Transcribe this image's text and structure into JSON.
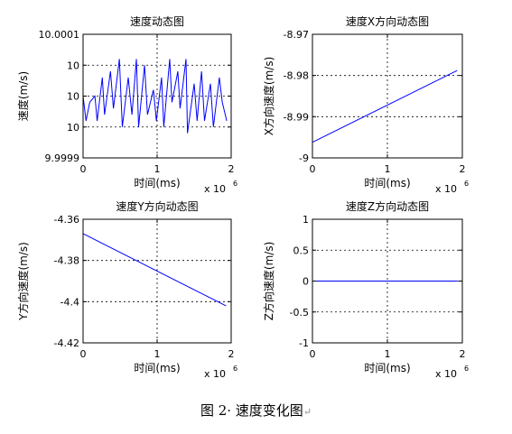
{
  "caption": "图 2· 速度变化图",
  "caption_mark": "↵",
  "chart_data": [
    {
      "type": "line",
      "title": "速度动态图",
      "xlabel": "时间(ms)",
      "ylabel": "速度(m/s)",
      "x_exponent_label": "x 10",
      "x_exponent_power": "6",
      "xlim": [
        0,
        2
      ],
      "ylim": [
        9.9999,
        10.0001
      ],
      "xticks": [
        0,
        1,
        2
      ],
      "xtick_labels": [
        "0",
        "1",
        "2"
      ],
      "yticks": [
        9.9999,
        9.99995,
        10,
        10.00005,
        10.0001
      ],
      "ytick_labels": [
        "9.9999",
        "10",
        "10",
        "10",
        "10.0001"
      ],
      "grid": "dotted",
      "series": [
        {
          "color": "#0000ff",
          "x": [
            0,
            0.04,
            0.09,
            0.16,
            0.19,
            0.26,
            0.29,
            0.37,
            0.41,
            0.49,
            0.53,
            0.61,
            0.66,
            0.72,
            0.75,
            0.83,
            0.87,
            0.95,
            0.99,
            1.06,
            1.09,
            1.17,
            1.2,
            1.28,
            1.31,
            1.39,
            1.41,
            1.5,
            1.54,
            1.6,
            1.64,
            1.72,
            1.76,
            1.84,
            1.88,
            1.94
          ],
          "y": [
            10.0,
            9.99996,
            9.99999,
            10.0,
            9.99996,
            10.00003,
            9.99997,
            10.00004,
            9.99998,
            10.00006,
            9.99995,
            10.00003,
            9.99997,
            10.00006,
            9.99995,
            10.00005,
            9.99997,
            10.00001,
            9.99996,
            10.00003,
            9.99995,
            10.00006,
            9.99999,
            10.00004,
            9.99998,
            10.00006,
            9.99994,
            10.00002,
            9.99996,
            10.00004,
            9.99996,
            10.00002,
            9.99995,
            10.00003,
            9.99999,
            9.99996
          ]
        }
      ]
    },
    {
      "type": "line",
      "title": "速度X方向动态图",
      "xlabel": "时间(ms)",
      "ylabel": "X方向速度(m/s)",
      "x_exponent_label": "x 10",
      "x_exponent_power": "6",
      "xlim": [
        0,
        2
      ],
      "ylim": [
        -9,
        -8.97
      ],
      "xticks": [
        0,
        1,
        2
      ],
      "xtick_labels": [
        "0",
        "1",
        "2"
      ],
      "yticks": [
        -9,
        -8.99,
        -8.98,
        -8.97
      ],
      "ytick_labels": [
        "-9",
        "-8.99",
        "-8.98",
        "-8.97"
      ],
      "grid": "dotted",
      "series": [
        {
          "color": "#0000ff",
          "x": [
            0,
            1.93
          ],
          "y": [
            -8.9962,
            -8.9788
          ]
        }
      ]
    },
    {
      "type": "line",
      "title": "速度Y方向动态图",
      "xlabel": "时间(ms)",
      "ylabel": "Y方向速度(m/s)",
      "x_exponent_label": "x 10",
      "x_exponent_power": "6",
      "xlim": [
        0,
        2
      ],
      "ylim": [
        -4.42,
        -4.36
      ],
      "xticks": [
        0,
        1,
        2
      ],
      "xtick_labels": [
        "0",
        "1",
        "2"
      ],
      "yticks": [
        -4.42,
        -4.4,
        -4.38,
        -4.36
      ],
      "ytick_labels": [
        "-4.42",
        "-4.4",
        "-4.38",
        "-4.36"
      ],
      "grid": "dotted",
      "series": [
        {
          "color": "#0000ff",
          "x": [
            0,
            1.93
          ],
          "y": [
            -4.367,
            -4.402
          ]
        }
      ]
    },
    {
      "type": "line",
      "title": "速度Z方向动态图",
      "xlabel": "时间(ms)",
      "ylabel": "Z方向速度(m/s)",
      "x_exponent_label": "x 10",
      "x_exponent_power": "6",
      "xlim": [
        0,
        2
      ],
      "ylim": [
        -1,
        1
      ],
      "xticks": [
        0,
        1,
        2
      ],
      "xtick_labels": [
        "0",
        "1",
        "2"
      ],
      "yticks": [
        -1,
        -0.5,
        0,
        0.5,
        1
      ],
      "ytick_labels": [
        "-1",
        "-0.5",
        "0",
        "0.5",
        "1"
      ],
      "grid": "dotted",
      "series": [
        {
          "color": "#0000ff",
          "x": [
            0,
            1.93
          ],
          "y": [
            0,
            0
          ]
        }
      ]
    }
  ]
}
